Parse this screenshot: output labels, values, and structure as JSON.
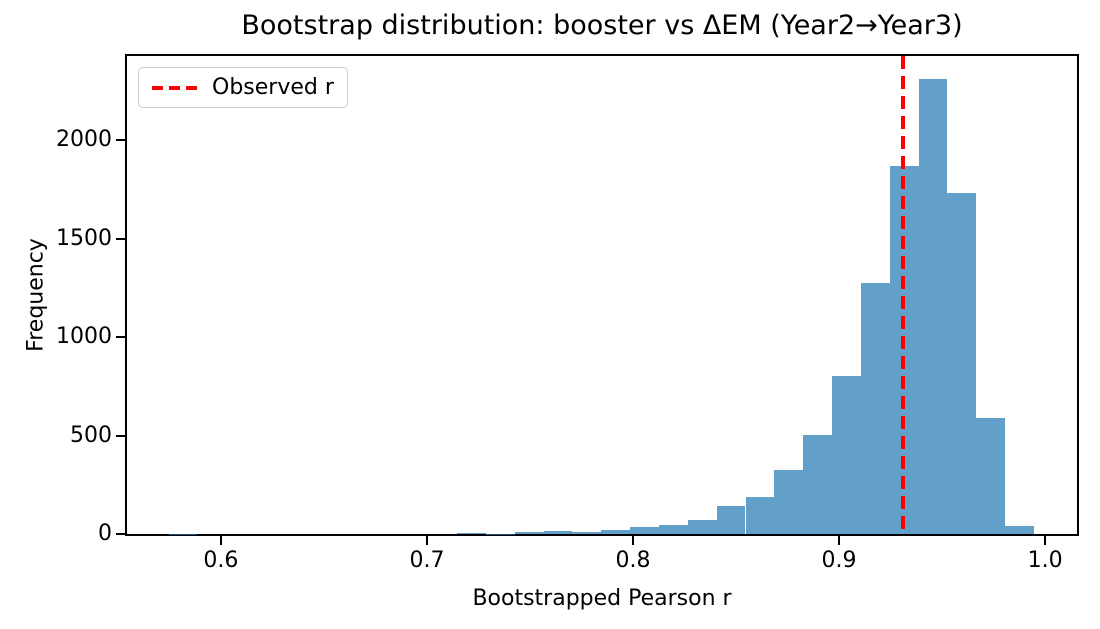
{
  "chart_data": {
    "type": "bar",
    "subtype": "histogram",
    "title": "Bootstrap distribution: booster vs ΔEM (Year2→Year3)",
    "xlabel": "Bootstrapped Pearson r",
    "ylabel": "Frequency",
    "bins": {
      "start": 0.5746,
      "width": 0.014,
      "count": 30
    },
    "values": [
      1,
      0,
      0,
      0,
      0,
      0,
      0,
      0,
      0,
      0,
      5,
      2,
      8,
      14,
      8,
      22,
      36,
      48,
      70,
      140,
      190,
      325,
      505,
      800,
      1275,
      1870,
      2310,
      1730,
      590,
      40
    ],
    "xlim": [
      0.5544,
      1.0155
    ],
    "ylim": [
      0,
      2426
    ],
    "x_ticks": {
      "values": [
        0.6,
        0.7,
        0.8,
        0.9,
        1.0
      ],
      "labels": [
        "0.6",
        "0.7",
        "0.8",
        "0.9",
        "1.0"
      ]
    },
    "y_ticks": {
      "values": [
        0,
        500,
        1000,
        1500,
        2000
      ],
      "labels": [
        "0",
        "500",
        "1000",
        "1500",
        "2000"
      ]
    },
    "observed_r": 0.931,
    "grid": false,
    "legend": {
      "label": "Observed r",
      "position": "upper left"
    },
    "colors": {
      "bar_fill": "rgba(31,119,180,0.7)",
      "bar_fill_hex_on_white": "#62A0CB",
      "observed_line": "#ff0000",
      "spine": "#000000",
      "legend_border": "#cccccc"
    }
  }
}
